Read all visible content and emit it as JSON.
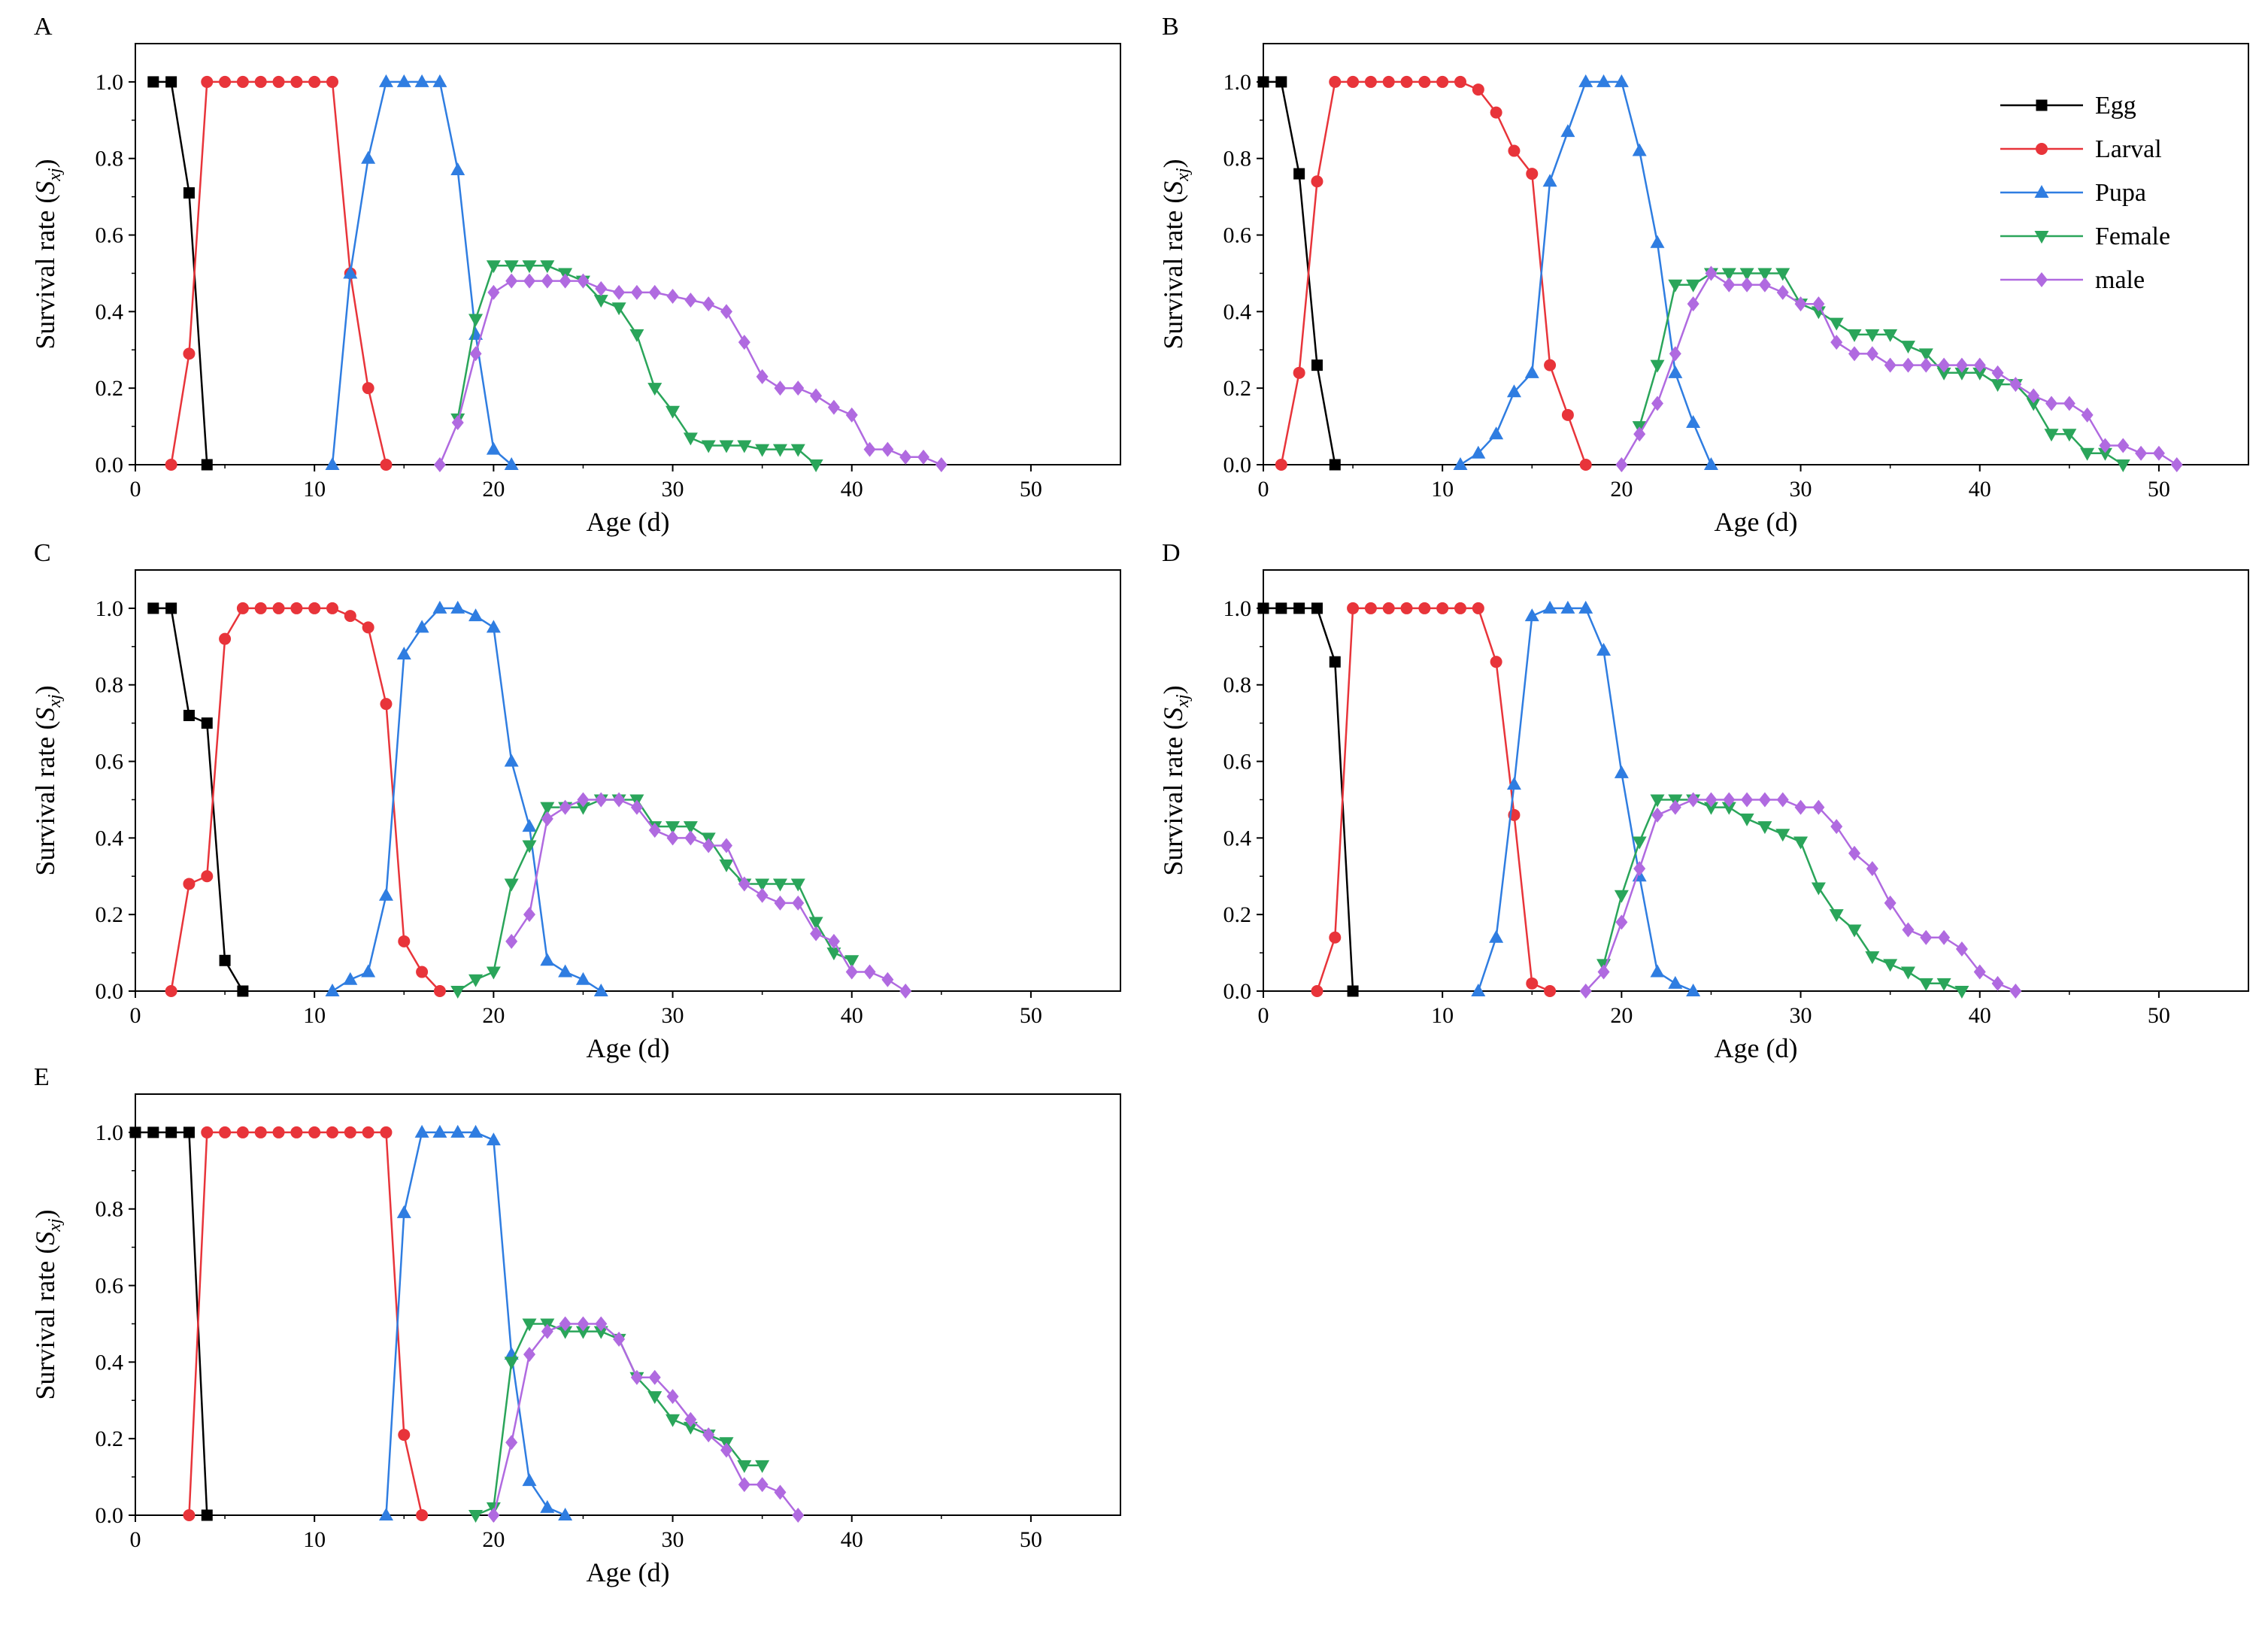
{
  "figure": {
    "x_label": "Age (d)",
    "y_label_main": "Survival rate (",
    "y_label_var": "S",
    "y_label_sub": "xj",
    "y_label_close": ")"
  },
  "legend": {
    "entries": [
      "Egg",
      "Larval",
      "Pupa",
      "Female",
      "male"
    ]
  },
  "series_colors": {
    "Egg": "#000000",
    "Larval": "#e8343a",
    "Pupa": "#2f7de1",
    "Female": "#2aa55a",
    "male": "#b06ae0"
  },
  "chart_data": [
    {
      "type": "line",
      "panel_label": "A",
      "xlabel": "Age (d)",
      "ylabel": "Survival rate (Sxj)",
      "xlim": [
        0,
        55
      ],
      "ylim": [
        0,
        1.1
      ],
      "xticks": [
        0,
        10,
        20,
        30,
        40,
        50
      ],
      "yticks": [
        "0.0",
        "0.2",
        "0.4",
        "0.6",
        "0.8",
        "1.0"
      ],
      "series": [
        {
          "name": "Egg",
          "x": [
            1,
            2,
            3,
            4
          ],
          "values": [
            1.0,
            1.0,
            0.71,
            0.0
          ]
        },
        {
          "name": "Larval",
          "x": [
            2,
            3,
            4,
            5,
            6,
            7,
            8,
            9,
            10,
            11,
            12,
            13,
            14
          ],
          "values": [
            0.0,
            0.29,
            1.0,
            1.0,
            1.0,
            1.0,
            1.0,
            1.0,
            1.0,
            1.0,
            0.5,
            0.2,
            0.0
          ]
        },
        {
          "name": "Pupa",
          "x": [
            11,
            12,
            13,
            14,
            15,
            16,
            17,
            18,
            19,
            20,
            21
          ],
          "values": [
            0.0,
            0.5,
            0.8,
            1.0,
            1.0,
            1.0,
            1.0,
            0.77,
            0.34,
            0.04,
            0.0
          ]
        },
        {
          "name": "Female",
          "x": [
            18,
            19,
            20,
            21,
            22,
            23,
            24,
            25,
            26,
            27,
            28,
            29,
            30,
            31,
            32,
            33,
            34,
            35,
            36,
            37,
            38
          ],
          "values": [
            0.12,
            0.38,
            0.52,
            0.52,
            0.52,
            0.52,
            0.5,
            0.48,
            0.43,
            0.41,
            0.34,
            0.2,
            0.14,
            0.07,
            0.05,
            0.05,
            0.05,
            0.04,
            0.04,
            0.04,
            0.0
          ]
        },
        {
          "name": "male",
          "x": [
            17,
            18,
            19,
            20,
            21,
            22,
            23,
            24,
            25,
            26,
            27,
            28,
            29,
            30,
            31,
            32,
            33,
            34,
            35,
            36,
            37,
            38,
            39,
            40,
            41,
            42,
            43,
            44,
            45
          ],
          "values": [
            0.0,
            0.11,
            0.29,
            0.45,
            0.48,
            0.48,
            0.48,
            0.48,
            0.48,
            0.46,
            0.45,
            0.45,
            0.45,
            0.44,
            0.43,
            0.42,
            0.4,
            0.32,
            0.23,
            0.2,
            0.2,
            0.18,
            0.15,
            0.13,
            0.04,
            0.04,
            0.02,
            0.02,
            0.0
          ]
        }
      ]
    },
    {
      "type": "line",
      "panel_label": "B",
      "xlabel": "Age (d)",
      "ylabel": "Survival rate (Sxj)",
      "xlim": [
        0,
        55
      ],
      "ylim": [
        0,
        1.1
      ],
      "xticks": [
        0,
        10,
        20,
        30,
        40,
        50
      ],
      "yticks": [
        "0.0",
        "0.2",
        "0.4",
        "0.6",
        "0.8",
        "1.0"
      ],
      "legend": true,
      "series": [
        {
          "name": "Egg",
          "x": [
            0,
            1,
            2,
            3,
            4
          ],
          "values": [
            1.0,
            1.0,
            0.76,
            0.26,
            0.0
          ]
        },
        {
          "name": "Larval",
          "x": [
            1,
            2,
            3,
            4,
            5,
            6,
            7,
            8,
            9,
            10,
            11,
            12,
            13,
            14,
            15,
            16,
            17,
            18
          ],
          "values": [
            0.0,
            0.24,
            0.74,
            1.0,
            1.0,
            1.0,
            1.0,
            1.0,
            1.0,
            1.0,
            1.0,
            0.98,
            0.92,
            0.82,
            0.76,
            0.26,
            0.13,
            0.0
          ]
        },
        {
          "name": "Pupa",
          "x": [
            11,
            12,
            13,
            14,
            15,
            16,
            17,
            18,
            19,
            20,
            21,
            22,
            23,
            24,
            25
          ],
          "values": [
            0.0,
            0.03,
            0.08,
            0.19,
            0.24,
            0.74,
            0.87,
            1.0,
            1.0,
            1.0,
            0.82,
            0.58,
            0.24,
            0.11,
            0.0
          ]
        },
        {
          "name": "Female",
          "x": [
            21,
            22,
            23,
            24,
            25,
            26,
            27,
            28,
            29,
            30,
            31,
            32,
            33,
            34,
            35,
            36,
            37,
            38,
            39,
            40,
            41,
            42,
            43,
            44,
            45,
            46,
            47,
            48
          ],
          "values": [
            0.1,
            0.26,
            0.47,
            0.47,
            0.5,
            0.5,
            0.5,
            0.5,
            0.5,
            0.42,
            0.4,
            0.37,
            0.34,
            0.34,
            0.34,
            0.31,
            0.29,
            0.24,
            0.24,
            0.24,
            0.21,
            0.21,
            0.16,
            0.08,
            0.08,
            0.03,
            0.03,
            0.0
          ]
        },
        {
          "name": "male",
          "x": [
            20,
            21,
            22,
            23,
            24,
            25,
            26,
            27,
            28,
            29,
            30,
            31,
            32,
            33,
            34,
            35,
            36,
            37,
            38,
            39,
            40,
            41,
            42,
            43,
            44,
            45,
            46,
            47,
            48,
            49,
            50,
            51
          ],
          "values": [
            0.0,
            0.08,
            0.16,
            0.29,
            0.42,
            0.5,
            0.47,
            0.47,
            0.47,
            0.45,
            0.42,
            0.42,
            0.32,
            0.29,
            0.29,
            0.26,
            0.26,
            0.26,
            0.26,
            0.26,
            0.26,
            0.24,
            0.21,
            0.18,
            0.16,
            0.16,
            0.13,
            0.05,
            0.05,
            0.03,
            0.03,
            0.0
          ]
        }
      ]
    },
    {
      "type": "line",
      "panel_label": "C",
      "xlabel": "Age (d)",
      "ylabel": "Survival rate (Sxj)",
      "xlim": [
        0,
        55
      ],
      "ylim": [
        0,
        1.1
      ],
      "xticks": [
        0,
        10,
        20,
        30,
        40,
        50
      ],
      "yticks": [
        "0.0",
        "0.2",
        "0.4",
        "0.6",
        "0.8",
        "1.0"
      ],
      "series": [
        {
          "name": "Egg",
          "x": [
            1,
            2,
            3,
            4,
            5,
            6
          ],
          "values": [
            1.0,
            1.0,
            0.72,
            0.7,
            0.08,
            0.0
          ]
        },
        {
          "name": "Larval",
          "x": [
            2,
            3,
            4,
            5,
            6,
            7,
            8,
            9,
            10,
            11,
            12,
            13,
            14,
            15,
            16,
            17
          ],
          "values": [
            0.0,
            0.28,
            0.3,
            0.92,
            1.0,
            1.0,
            1.0,
            1.0,
            1.0,
            1.0,
            0.98,
            0.95,
            0.75,
            0.13,
            0.05,
            0.0
          ]
        },
        {
          "name": "Pupa",
          "x": [
            11,
            12,
            13,
            14,
            15,
            16,
            17,
            18,
            19,
            20,
            21,
            22,
            23,
            24,
            25,
            26
          ],
          "values": [
            0.0,
            0.03,
            0.05,
            0.25,
            0.88,
            0.95,
            1.0,
            1.0,
            0.98,
            0.95,
            0.6,
            0.43,
            0.08,
            0.05,
            0.03,
            0.0
          ]
        },
        {
          "name": "Female",
          "x": [
            18,
            19,
            20,
            21,
            22,
            23,
            24,
            25,
            26,
            27,
            28,
            29,
            30,
            31,
            32,
            33,
            34,
            35,
            36,
            37,
            38,
            39,
            40
          ],
          "values": [
            0.0,
            0.03,
            0.05,
            0.28,
            0.38,
            0.48,
            0.48,
            0.48,
            0.5,
            0.5,
            0.5,
            0.43,
            0.43,
            0.43,
            0.4,
            0.33,
            0.28,
            0.28,
            0.28,
            0.28,
            0.18,
            0.1,
            0.08
          ]
        },
        {
          "name": "male",
          "x": [
            21,
            22,
            23,
            24,
            25,
            26,
            27,
            28,
            29,
            30,
            31,
            32,
            33,
            34,
            35,
            36,
            37,
            38,
            39,
            40,
            41,
            42,
            43
          ],
          "values": [
            0.13,
            0.2,
            0.45,
            0.48,
            0.5,
            0.5,
            0.5,
            0.48,
            0.42,
            0.4,
            0.4,
            0.38,
            0.38,
            0.28,
            0.25,
            0.23,
            0.23,
            0.15,
            0.13,
            0.05,
            0.05,
            0.03,
            0.0
          ]
        }
      ]
    },
    {
      "type": "line",
      "panel_label": "D",
      "xlabel": "Age (d)",
      "ylabel": "Survival rate (Sxj)",
      "xlim": [
        0,
        55
      ],
      "ylim": [
        0,
        1.1
      ],
      "xticks": [
        0,
        10,
        20,
        30,
        40,
        50
      ],
      "yticks": [
        "0.0",
        "0.2",
        "0.4",
        "0.6",
        "0.8",
        "1.0"
      ],
      "series": [
        {
          "name": "Egg",
          "x": [
            0,
            1,
            2,
            3,
            4,
            5
          ],
          "values": [
            1.0,
            1.0,
            1.0,
            1.0,
            0.86,
            0.0
          ]
        },
        {
          "name": "Larval",
          "x": [
            3,
            4,
            5,
            6,
            7,
            8,
            9,
            10,
            11,
            12,
            13,
            14,
            15,
            16
          ],
          "values": [
            0.0,
            0.14,
            1.0,
            1.0,
            1.0,
            1.0,
            1.0,
            1.0,
            1.0,
            1.0,
            0.86,
            0.46,
            0.02,
            0.0
          ]
        },
        {
          "name": "Pupa",
          "x": [
            12,
            13,
            14,
            15,
            16,
            17,
            18,
            19,
            20,
            21,
            22,
            23,
            24
          ],
          "values": [
            0.0,
            0.14,
            0.54,
            0.98,
            1.0,
            1.0,
            1.0,
            0.89,
            0.57,
            0.3,
            0.05,
            0.02,
            0.0
          ]
        },
        {
          "name": "Female",
          "x": [
            19,
            20,
            21,
            22,
            23,
            24,
            25,
            26,
            27,
            28,
            29,
            30,
            31,
            32,
            33,
            34,
            35,
            36,
            37,
            38,
            39
          ],
          "values": [
            0.07,
            0.25,
            0.39,
            0.5,
            0.5,
            0.5,
            0.48,
            0.48,
            0.45,
            0.43,
            0.41,
            0.39,
            0.27,
            0.2,
            0.16,
            0.09,
            0.07,
            0.05,
            0.02,
            0.02,
            0.0
          ]
        },
        {
          "name": "male",
          "x": [
            18,
            19,
            20,
            21,
            22,
            23,
            24,
            25,
            26,
            27,
            28,
            29,
            30,
            31,
            32,
            33,
            34,
            35,
            36,
            37,
            38,
            39,
            40,
            41,
            42
          ],
          "values": [
            0.0,
            0.05,
            0.18,
            0.32,
            0.46,
            0.48,
            0.5,
            0.5,
            0.5,
            0.5,
            0.5,
            0.5,
            0.48,
            0.48,
            0.43,
            0.36,
            0.32,
            0.23,
            0.16,
            0.14,
            0.14,
            0.11,
            0.05,
            0.02,
            0.0
          ]
        }
      ]
    },
    {
      "type": "line",
      "panel_label": "E",
      "xlabel": "Age (d)",
      "ylabel": "Survival rate (Sxj)",
      "xlim": [
        0,
        55
      ],
      "ylim": [
        0,
        1.1
      ],
      "xticks": [
        0,
        10,
        20,
        30,
        40,
        50
      ],
      "yticks": [
        "0.0",
        "0.2",
        "0.4",
        "0.6",
        "0.8",
        "1.0"
      ],
      "series": [
        {
          "name": "Egg",
          "x": [
            0,
            1,
            2,
            3,
            4
          ],
          "values": [
            1.0,
            1.0,
            1.0,
            1.0,
            0.0
          ]
        },
        {
          "name": "Larval",
          "x": [
            3,
            4,
            5,
            6,
            7,
            8,
            9,
            10,
            11,
            12,
            13,
            14,
            15,
            16
          ],
          "values": [
            0.0,
            1.0,
            1.0,
            1.0,
            1.0,
            1.0,
            1.0,
            1.0,
            1.0,
            1.0,
            1.0,
            1.0,
            0.21,
            0.0
          ]
        },
        {
          "name": "Pupa",
          "x": [
            14,
            15,
            16,
            17,
            18,
            19,
            20,
            21,
            22,
            23,
            24
          ],
          "values": [
            0.0,
            0.79,
            1.0,
            1.0,
            1.0,
            1.0,
            0.98,
            0.42,
            0.09,
            0.02,
            0.0
          ]
        },
        {
          "name": "Female",
          "x": [
            19,
            20,
            21,
            22,
            23,
            24,
            25,
            26,
            27,
            28,
            29,
            30,
            31,
            32,
            33,
            34,
            35
          ],
          "values": [
            0.0,
            0.02,
            0.4,
            0.5,
            0.5,
            0.48,
            0.48,
            0.48,
            0.46,
            0.36,
            0.31,
            0.25,
            0.23,
            0.21,
            0.19,
            0.13,
            0.13
          ]
        },
        {
          "name": "male",
          "x": [
            20,
            21,
            22,
            23,
            24,
            25,
            26,
            27,
            28,
            29,
            30,
            31,
            32,
            33,
            34,
            35,
            36,
            37
          ],
          "values": [
            0.0,
            0.19,
            0.42,
            0.48,
            0.5,
            0.5,
            0.5,
            0.46,
            0.36,
            0.36,
            0.31,
            0.25,
            0.21,
            0.17,
            0.08,
            0.08,
            0.06,
            0.0
          ]
        }
      ]
    }
  ]
}
